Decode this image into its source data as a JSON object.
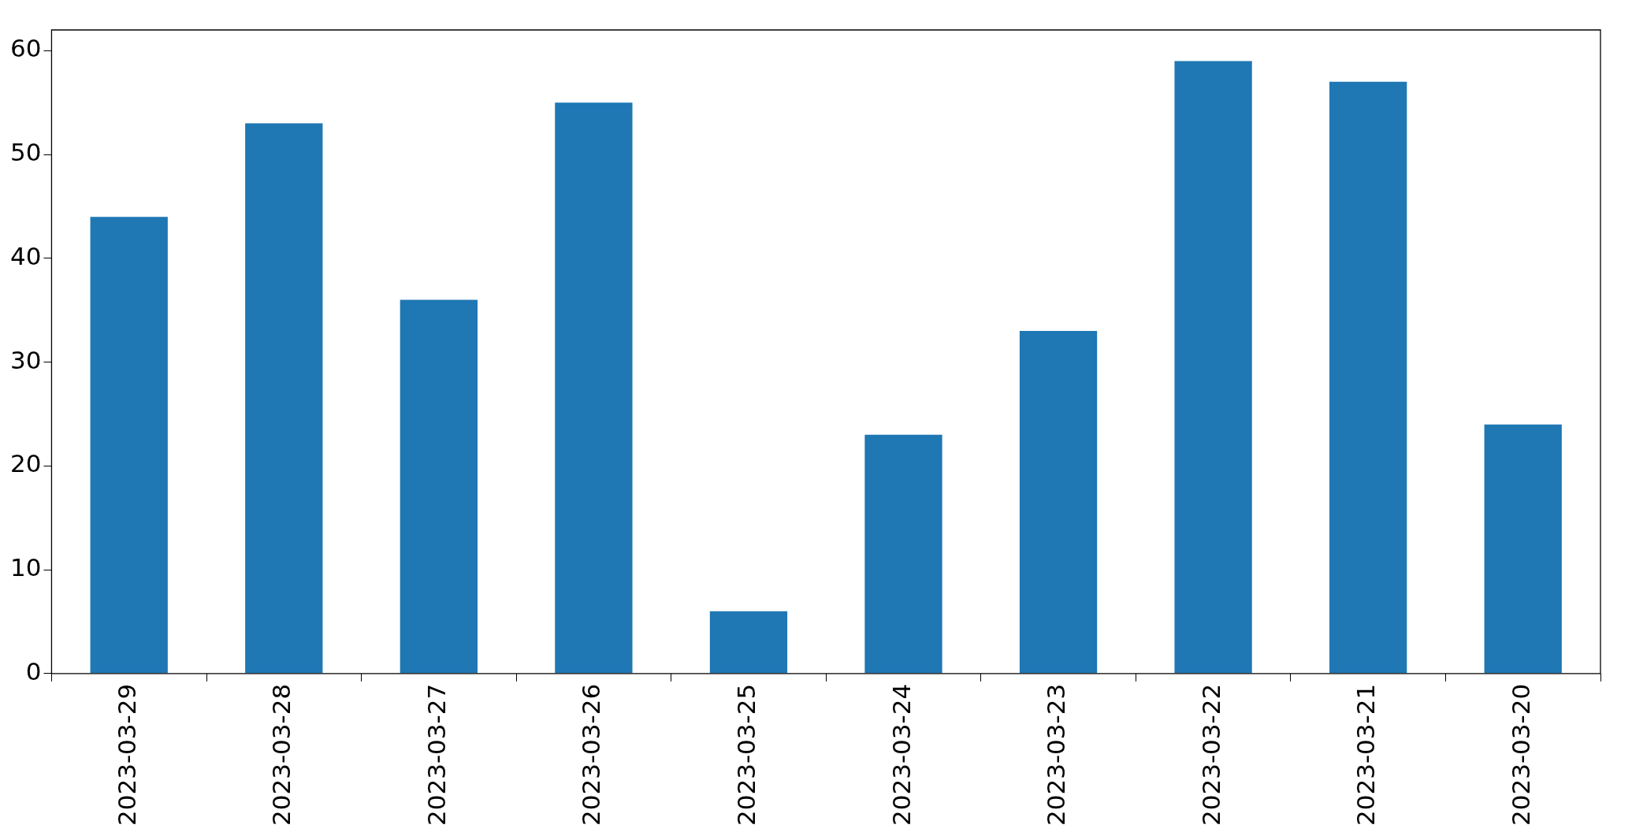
{
  "chart_data": {
    "type": "bar",
    "categories": [
      "2023-03-29",
      "2023-03-28",
      "2023-03-27",
      "2023-03-26",
      "2023-03-25",
      "2023-03-24",
      "2023-03-23",
      "2023-03-22",
      "2023-03-21",
      "2023-03-20"
    ],
    "values": [
      44,
      53,
      36,
      55,
      6,
      23,
      33,
      59,
      57,
      24
    ],
    "color": "#1f77b4",
    "ylim": [
      0,
      62
    ],
    "yticks": [
      0,
      10,
      20,
      30,
      40,
      50,
      60
    ],
    "grid": false
  }
}
